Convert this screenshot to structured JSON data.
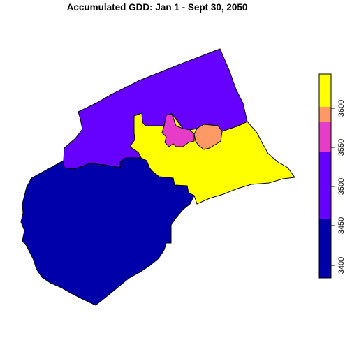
{
  "map": {
    "title": "Accumulated GDD: Jan 1 - Sept 30, 2050"
  },
  "legend": {
    "ticks": [
      "3400",
      "3450",
      "3500",
      "3550",
      "3600"
    ],
    "classes": [
      {
        "range": "3375-3450",
        "color": "#0000AA"
      },
      {
        "range": "3450-3525",
        "color": "#6600FF"
      },
      {
        "range": "3525-3550",
        "color": "#E63CC7"
      },
      {
        "range": "3550-3575",
        "color": "#FF9966"
      },
      {
        "range": "3575-3640",
        "color": "#FFFF00"
      }
    ]
  },
  "regions": [
    {
      "id": "southwest",
      "class": 0
    },
    {
      "id": "north",
      "class": 1
    },
    {
      "id": "central-east",
      "class": 4
    },
    {
      "id": "central-magenta",
      "class": 2
    },
    {
      "id": "central-orange",
      "class": 3
    }
  ]
}
